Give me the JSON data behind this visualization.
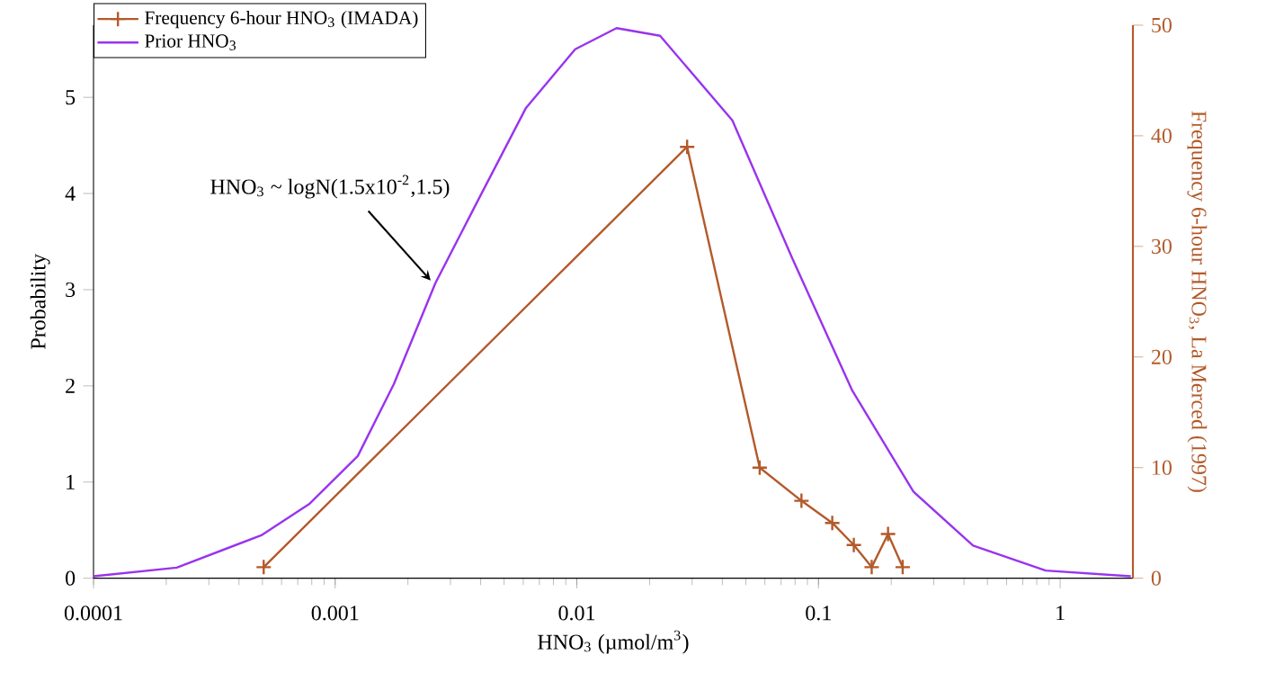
{
  "chart_data": {
    "type": "line",
    "xlabel": "HNO$_{3}$ (µmol/m$^{3}$)",
    "ylabel": "Probability",
    "y2label": "Frequency 6-hour HNO$_{3}$, La Merced (1997)",
    "log": "x",
    "xlim": [
      0.0001,
      2
    ],
    "xticks": [
      0.0001,
      0.001,
      0.01,
      0.1,
      1
    ],
    "ylim": [
      0,
      5.75
    ],
    "yticks": [
      0,
      1,
      2,
      3,
      4,
      5
    ],
    "y2lim": [
      0,
      50
    ],
    "y2ticks": [
      0,
      10,
      20,
      30,
      40,
      50
    ],
    "legend": "top left",
    "grid": false,
    "series": [
      {
        "name": "Frequency 6-hour HNO$_{3}$ (IMADA)",
        "color": "#b35a2a",
        "axis": "y2",
        "marker": "cross",
        "x": [
          0.000506,
          0.0286,
          0.0571,
          0.085,
          0.114,
          0.14,
          0.166,
          0.194,
          0.223
        ],
        "values": [
          1,
          39,
          10,
          7,
          5,
          3,
          1,
          4,
          1
        ]
      },
      {
        "name": "Prior HNO$_{3}$",
        "color": "#9933ee",
        "marker": "none",
        "x": [
          0.0001,
          0.000221,
          0.000498,
          0.00078,
          0.00124,
          0.00175,
          0.0026,
          0.00394,
          0.00616,
          0.00984,
          0.0146,
          0.0221,
          0.044,
          0.0778,
          0.138,
          0.247,
          0.436,
          0.871,
          1.96
        ],
        "values": [
          0.02,
          0.11,
          0.45,
          0.77,
          1.27,
          2.02,
          3.07,
          3.95,
          4.89,
          5.5,
          5.72,
          5.64,
          4.76,
          3.33,
          1.95,
          0.9,
          0.34,
          0.08,
          0.02
        ]
      }
    ],
    "annotations": [
      {
        "text": "HNO$_{3}$ ~ logN(1.5x10$^{-2}$,1.5)",
        "x": 0.0026,
        "y": 3.07
      }
    ]
  }
}
